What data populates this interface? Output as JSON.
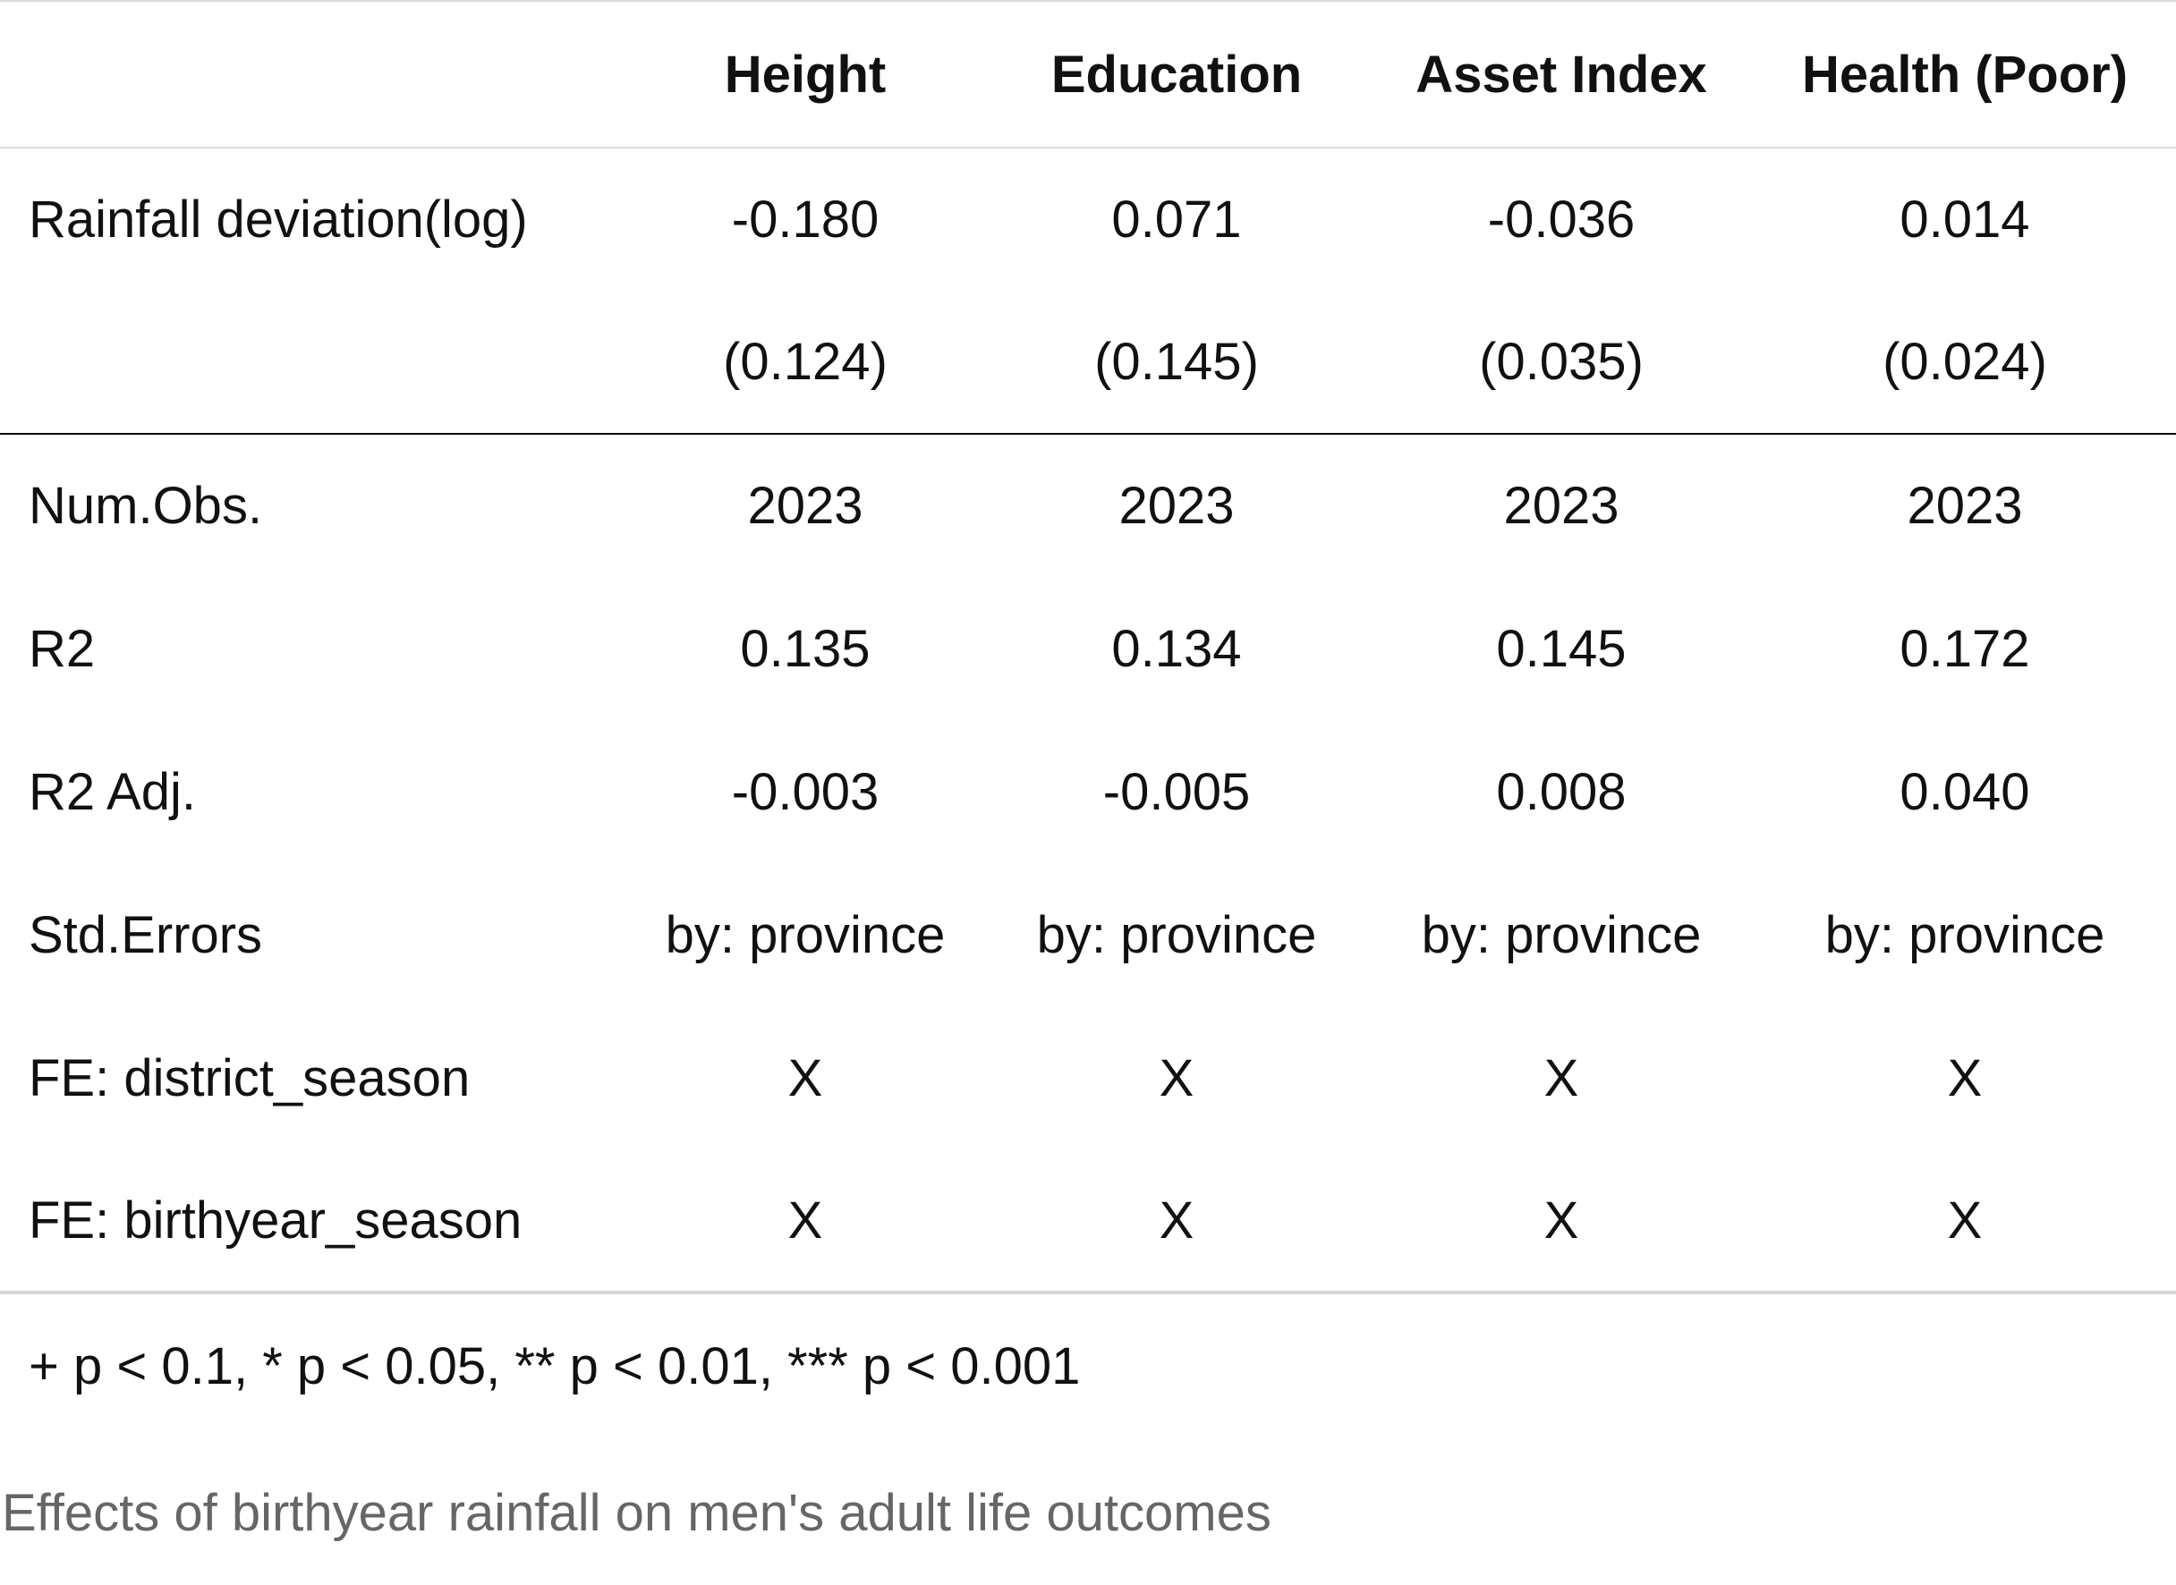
{
  "table": {
    "columns": [
      "",
      "Height",
      "Education",
      "Asset Index",
      "Health (Poor)"
    ],
    "coefficient_rows": [
      {
        "label": "Rainfall deviation(log)",
        "values": [
          "-0.180",
          "0.071",
          "-0.036",
          "0.014"
        ]
      },
      {
        "label": "",
        "values": [
          "(0.124)",
          "(0.145)",
          "(0.035)",
          "(0.024)"
        ]
      }
    ],
    "stat_rows": [
      {
        "label": "Num.Obs.",
        "values": [
          "2023",
          "2023",
          "2023",
          "2023"
        ]
      },
      {
        "label": "R2",
        "values": [
          "0.135",
          "0.134",
          "0.145",
          "0.172"
        ]
      },
      {
        "label": "R2 Adj.",
        "values": [
          "-0.003",
          "-0.005",
          "0.008",
          "0.040"
        ]
      },
      {
        "label": "Std.Errors",
        "values": [
          "by: province",
          "by: province",
          "by: province",
          "by: province"
        ]
      },
      {
        "label": "FE: district_season",
        "values": [
          "X",
          "X",
          "X",
          "X"
        ]
      },
      {
        "label": "FE: birthyear_season",
        "values": [
          "X",
          "X",
          "X",
          "X"
        ]
      }
    ],
    "notes": "+ p < 0.1, * p < 0.05, ** p < 0.01, *** p < 0.001",
    "caption": "Effects of birthyear rainfall on men's adult life outcomes"
  }
}
